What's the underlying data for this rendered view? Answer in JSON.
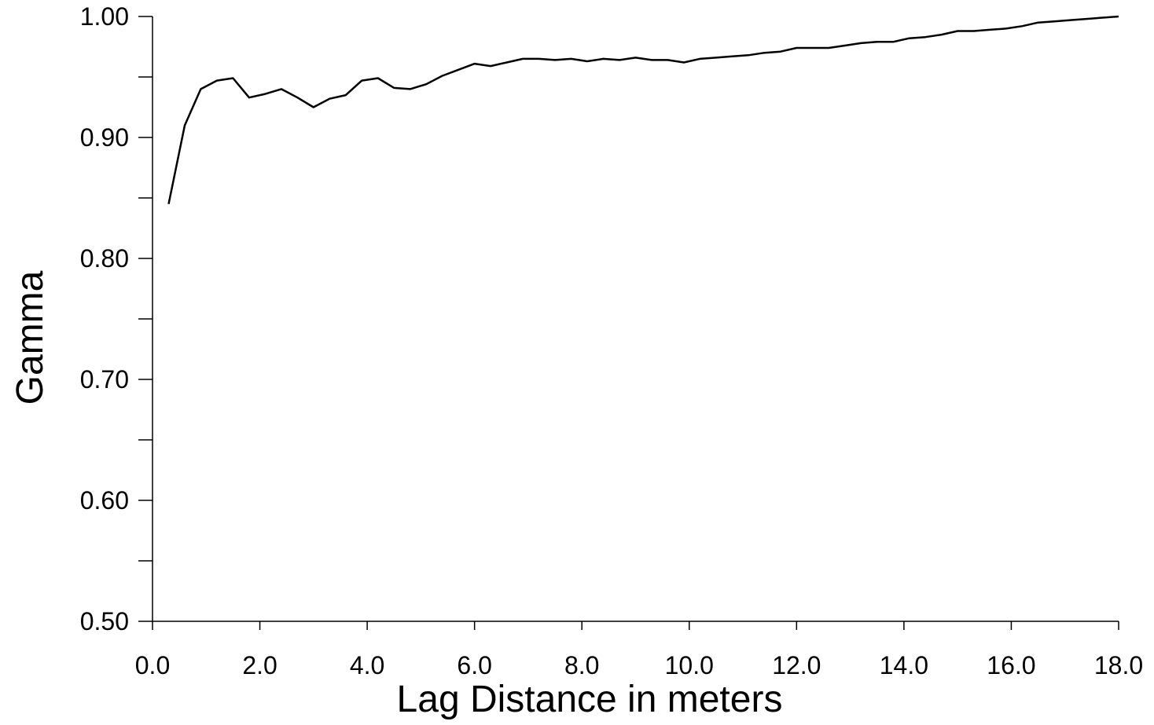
{
  "chart_data": {
    "type": "line",
    "title": "",
    "xlabel": "Lag Distance in meters",
    "ylabel": "Gamma",
    "xlim": [
      0,
      18
    ],
    "ylim": [
      0.5,
      1.0
    ],
    "grid": false,
    "x_ticks": [
      "0.0",
      "2.0",
      "4.0",
      "6.0",
      "8.0",
      "10.0",
      "12.0",
      "14.0",
      "16.0",
      "18.0"
    ],
    "y_ticks": [
      "0.50",
      "0.60",
      "0.70",
      "0.80",
      "0.90",
      "1.00"
    ],
    "series": [
      {
        "color": "#000000",
        "x": [
          0.3,
          0.6,
          0.9,
          1.2,
          1.5,
          1.8,
          2.1,
          2.4,
          2.7,
          3.0,
          3.3,
          3.6,
          3.9,
          4.2,
          4.5,
          4.8,
          5.1,
          5.4,
          5.7,
          6.0,
          6.3,
          6.6,
          6.9,
          7.2,
          7.5,
          7.8,
          8.1,
          8.4,
          8.7,
          9.0,
          9.3,
          9.6,
          9.9,
          10.2,
          10.5,
          10.8,
          11.1,
          11.4,
          11.7,
          12.0,
          12.3,
          12.6,
          12.9,
          13.2,
          13.5,
          13.8,
          14.1,
          14.4,
          14.7,
          15.0,
          15.3,
          15.6,
          15.9,
          16.2,
          16.5,
          16.8,
          17.1,
          17.4,
          17.7,
          18.0
        ],
        "y": [
          0.845,
          0.91,
          0.94,
          0.947,
          0.949,
          0.933,
          0.936,
          0.94,
          0.933,
          0.925,
          0.932,
          0.935,
          0.947,
          0.949,
          0.941,
          0.94,
          0.944,
          0.951,
          0.956,
          0.961,
          0.959,
          0.962,
          0.965,
          0.965,
          0.964,
          0.965,
          0.963,
          0.965,
          0.964,
          0.966,
          0.964,
          0.964,
          0.962,
          0.965,
          0.966,
          0.967,
          0.968,
          0.97,
          0.971,
          0.974,
          0.974,
          0.974,
          0.976,
          0.978,
          0.979,
          0.979,
          0.982,
          0.983,
          0.985,
          0.988,
          0.988,
          0.989,
          0.99,
          0.992,
          0.995,
          0.996,
          0.997,
          0.998,
          0.999,
          1.0
        ]
      }
    ]
  }
}
